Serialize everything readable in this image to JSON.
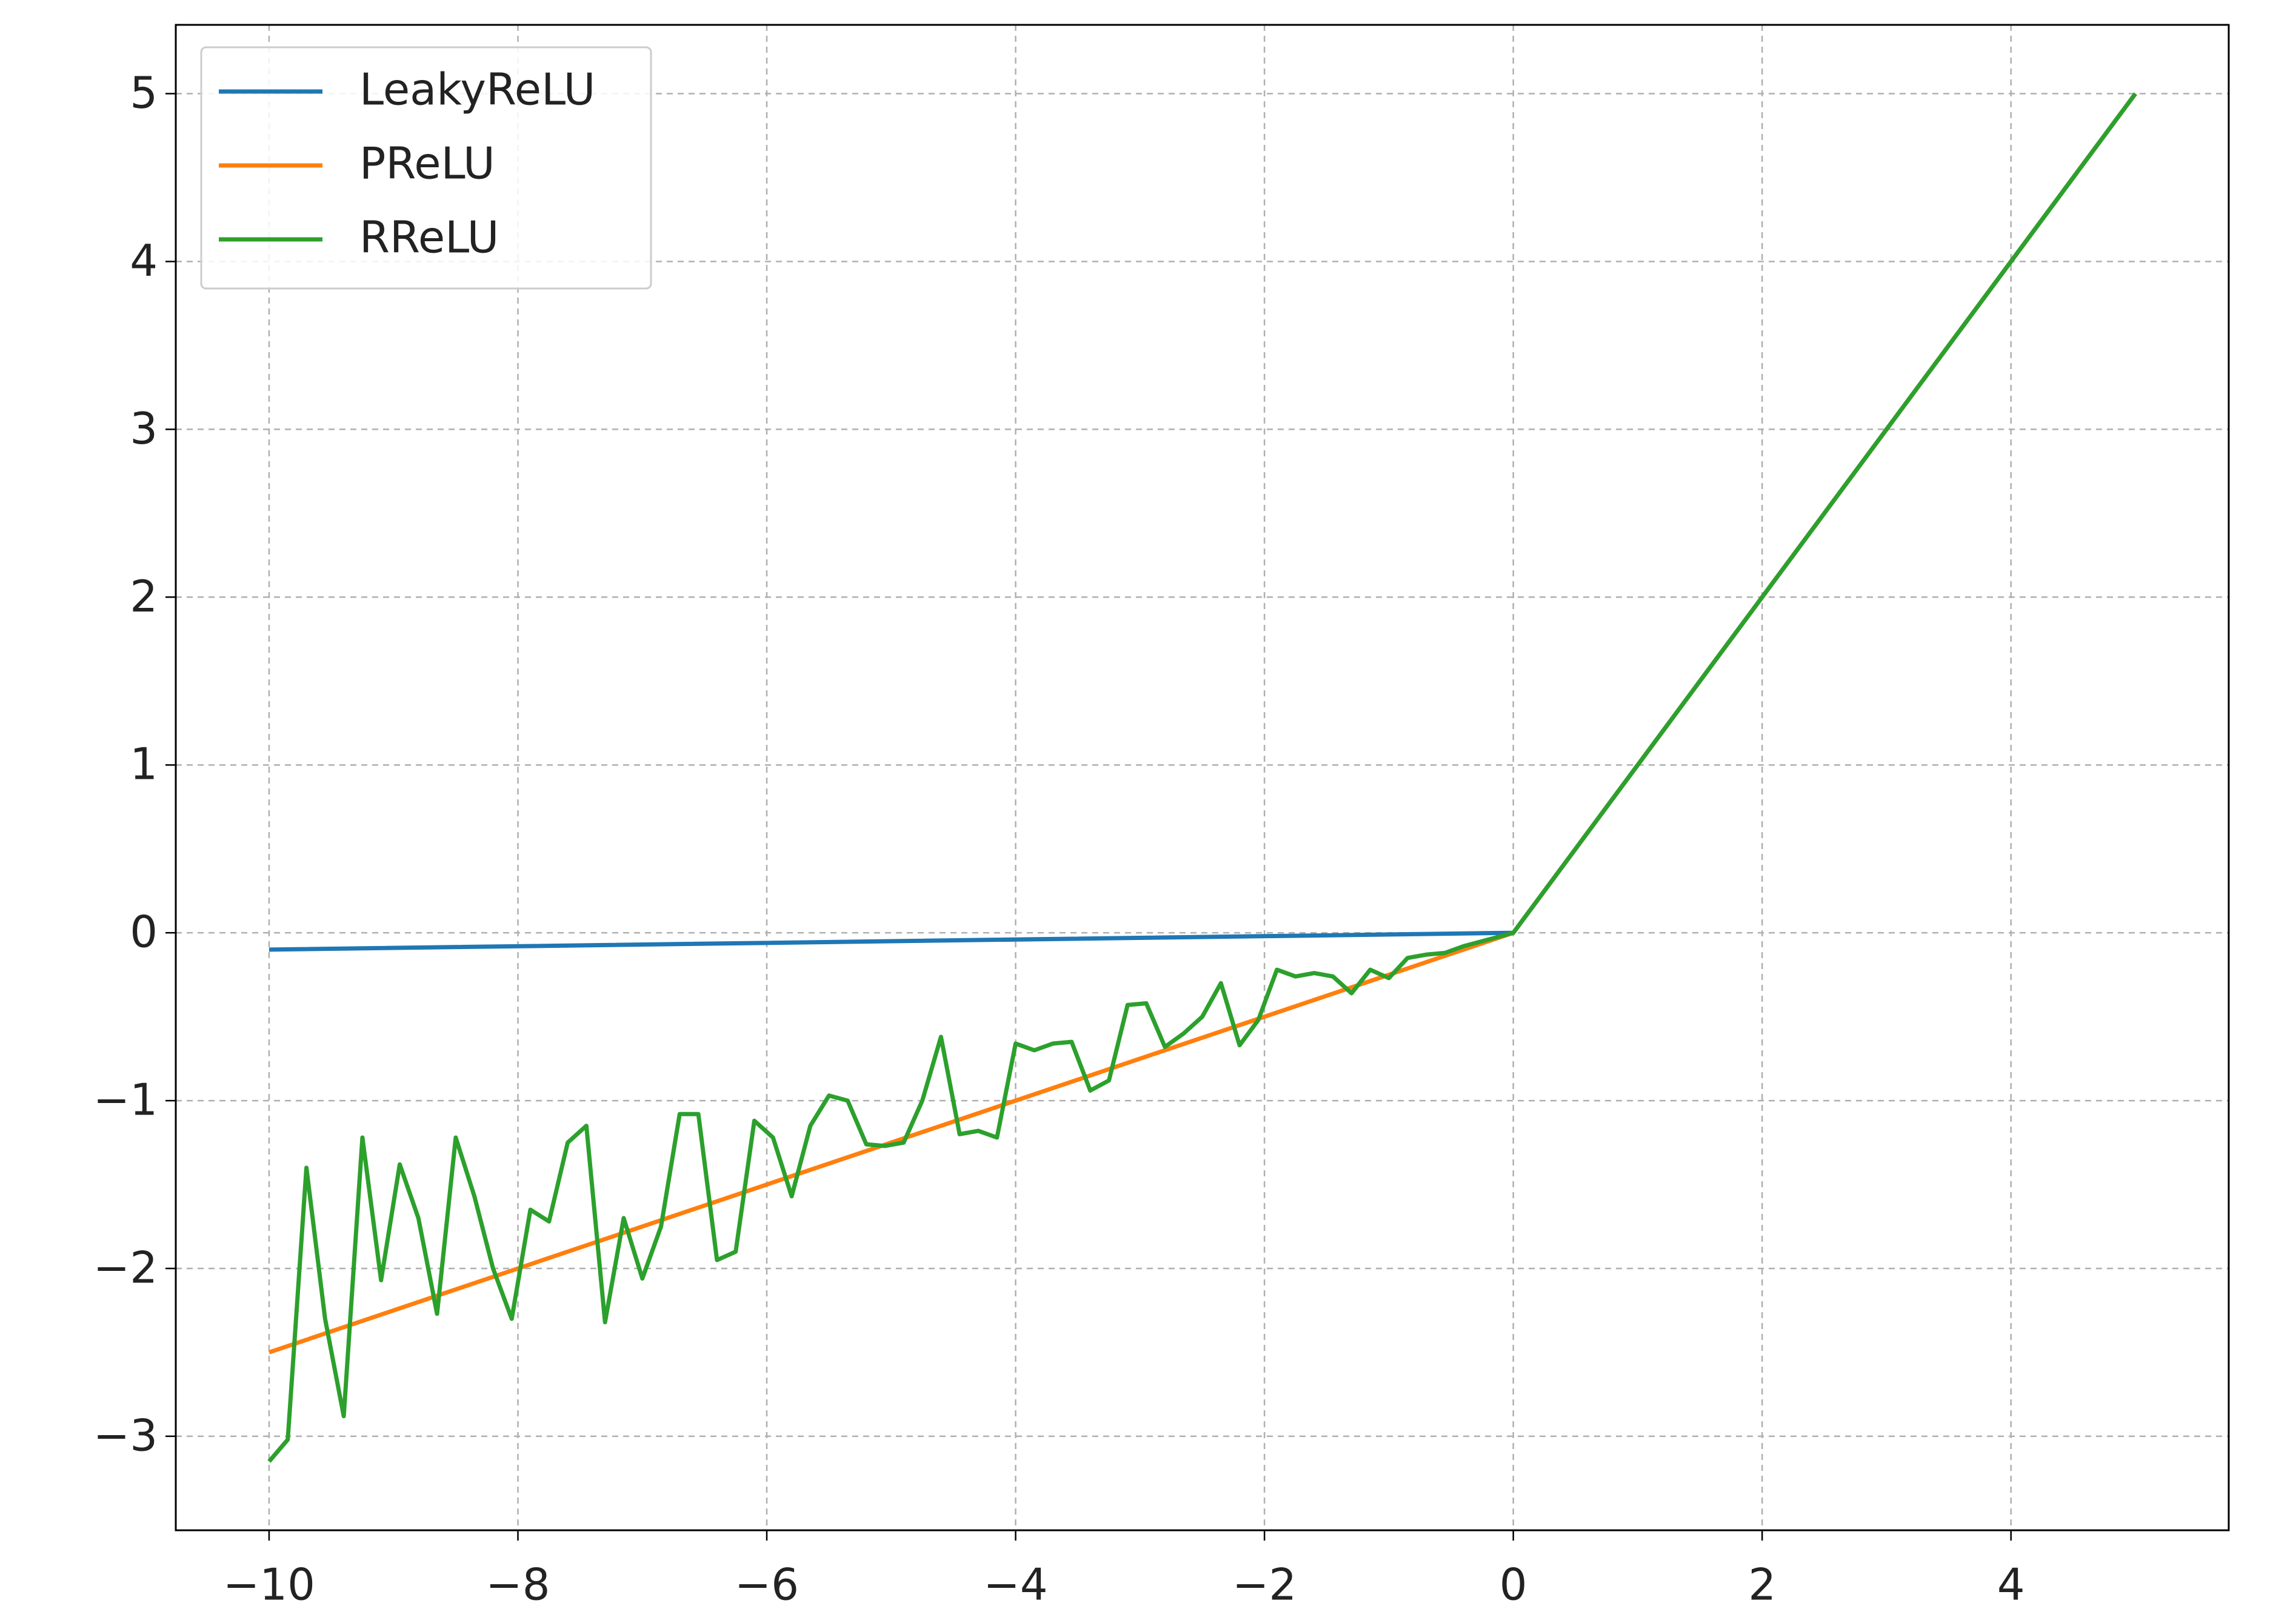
{
  "chart_data": {
    "type": "line",
    "series": [
      {
        "name": "LeakyReLU",
        "color": "#1f77b4",
        "x": [
          -10,
          0,
          5
        ],
        "values": [
          -0.1,
          0,
          5
        ]
      },
      {
        "name": "PReLU",
        "color": "#ff7f0e",
        "x": [
          -10,
          0,
          5
        ],
        "values": [
          -2.5,
          0,
          5
        ]
      },
      {
        "name": "RReLU",
        "color": "#2ca02c",
        "x": [
          -10,
          -9.85,
          -9.7,
          -9.55,
          -9.4,
          -9.25,
          -9.1,
          -8.95,
          -8.8,
          -8.65,
          -8.5,
          -8.35,
          -8.2,
          -8.05,
          -7.9,
          -7.75,
          -7.6,
          -7.45,
          -7.3,
          -7.15,
          -7.0,
          -6.85,
          -6.7,
          -6.55,
          -6.4,
          -6.25,
          -6.1,
          -5.95,
          -5.8,
          -5.65,
          -5.5,
          -5.35,
          -5.2,
          -5.05,
          -4.9,
          -4.75,
          -4.6,
          -4.45,
          -4.3,
          -4.15,
          -4.0,
          -3.85,
          -3.7,
          -3.55,
          -3.4,
          -3.25,
          -3.1,
          -2.95,
          -2.8,
          -2.65,
          -2.5,
          -2.35,
          -2.2,
          -2.05,
          -1.9,
          -1.75,
          -1.6,
          -1.45,
          -1.3,
          -1.15,
          -1.0,
          -0.85,
          -0.7,
          -0.55,
          -0.4,
          -0.25,
          -0.1,
          0,
          5
        ],
        "values": [
          -3.15,
          -3.02,
          -1.4,
          -2.3,
          -2.88,
          -1.22,
          -2.07,
          -1.38,
          -1.7,
          -2.27,
          -1.22,
          -1.57,
          -2.0,
          -2.3,
          -1.65,
          -1.72,
          -1.25,
          -1.15,
          -2.32,
          -1.7,
          -2.06,
          -1.75,
          -1.08,
          -1.08,
          -1.95,
          -1.9,
          -1.12,
          -1.22,
          -1.57,
          -1.15,
          -0.97,
          -1.0,
          -1.26,
          -1.27,
          -1.25,
          -1.0,
          -0.62,
          -1.2,
          -1.18,
          -1.22,
          -0.66,
          -0.7,
          -0.66,
          -0.65,
          -0.94,
          -0.88,
          -0.43,
          -0.42,
          -0.68,
          -0.6,
          -0.5,
          -0.3,
          -0.67,
          -0.52,
          -0.22,
          -0.26,
          -0.24,
          -0.26,
          -0.36,
          -0.22,
          -0.27,
          -0.15,
          -0.13,
          -0.12,
          -0.08,
          -0.05,
          -0.02,
          0,
          5
        ]
      }
    ],
    "xlim": [
      -10.75,
      5.75
    ],
    "ylim": [
      -3.56,
      5.41
    ],
    "xticks": [
      {
        "value": -10,
        "label": "−10"
      },
      {
        "value": -8,
        "label": "−8"
      },
      {
        "value": -6,
        "label": "−6"
      },
      {
        "value": -4,
        "label": "−4"
      },
      {
        "value": -2,
        "label": "−2"
      },
      0,
      2,
      4
    ],
    "yticks": [
      {
        "value": -3,
        "label": "−3"
      },
      {
        "value": -2,
        "label": "−2"
      },
      {
        "value": -1,
        "label": "−1"
      },
      0,
      1,
      2,
      3,
      4,
      5
    ],
    "grid": true,
    "legend": "upper-left"
  }
}
